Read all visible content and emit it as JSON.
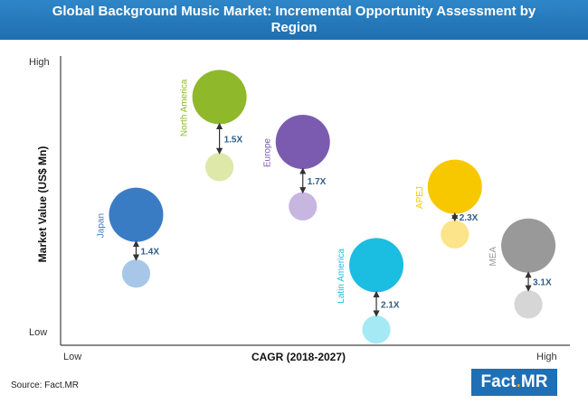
{
  "header": {
    "title_line1": "Global Background Music Market: Incremental Opportunity Assessment by",
    "title_line2": "Region"
  },
  "footer": {
    "source": "Source: Fact.MR",
    "logo_part1": "Fact",
    "logo_dot": ".",
    "logo_part2": "MR"
  },
  "chart_data": {
    "type": "bubble",
    "title": "Global Background Music Market: Incremental Opportunity Assessment by Region",
    "xlabel": "CAGR (2018-2027)",
    "ylabel": "Market Value (US$ Mn)",
    "x_ticks": {
      "low": "Low",
      "high": "High"
    },
    "y_ticks": {
      "low": "Low",
      "high": "High"
    },
    "xlim": [
      0,
      100
    ],
    "ylim": [
      0,
      100
    ],
    "series": [
      {
        "name": "Japan",
        "multiplier": "1.4X",
        "color": "#3a7cc4",
        "light_color": "#a8c7e8",
        "x": 13,
        "y_current": 44,
        "y_future": 23,
        "size_future": 1.0,
        "size_current": 0.52
      },
      {
        "name": "North America",
        "multiplier": "1.5X",
        "color": "#8fb82a",
        "light_color": "#dde8a9",
        "x": 30,
        "y_current": 86,
        "y_future": 61,
        "size_future": 1.0,
        "size_current": 0.52
      },
      {
        "name": "Europe",
        "multiplier": "1.7X",
        "color": "#7b5bb0",
        "light_color": "#c6b6e0",
        "x": 47,
        "y_current": 70,
        "y_future": 47,
        "size_future": 1.0,
        "size_current": 0.52
      },
      {
        "name": "Latin America",
        "multiplier": "2.1X",
        "color": "#1bbde0",
        "light_color": "#a5e9f5",
        "x": 62,
        "y_current": 26,
        "y_future": 3,
        "size_future": 1.0,
        "size_current": 0.52
      },
      {
        "name": "APEJ",
        "multiplier": "2.3X",
        "color": "#f7c800",
        "light_color": "#fbe48a",
        "x": 78,
        "y_current": 54,
        "y_future": 37,
        "size_future": 1.0,
        "size_current": 0.52
      },
      {
        "name": "MEA",
        "multiplier": "3.1X",
        "color": "#999999",
        "light_color": "#d6d6d6",
        "x": 93,
        "y_current": 33,
        "y_future": 12,
        "size_future": 1.0,
        "size_current": 0.52
      }
    ]
  }
}
